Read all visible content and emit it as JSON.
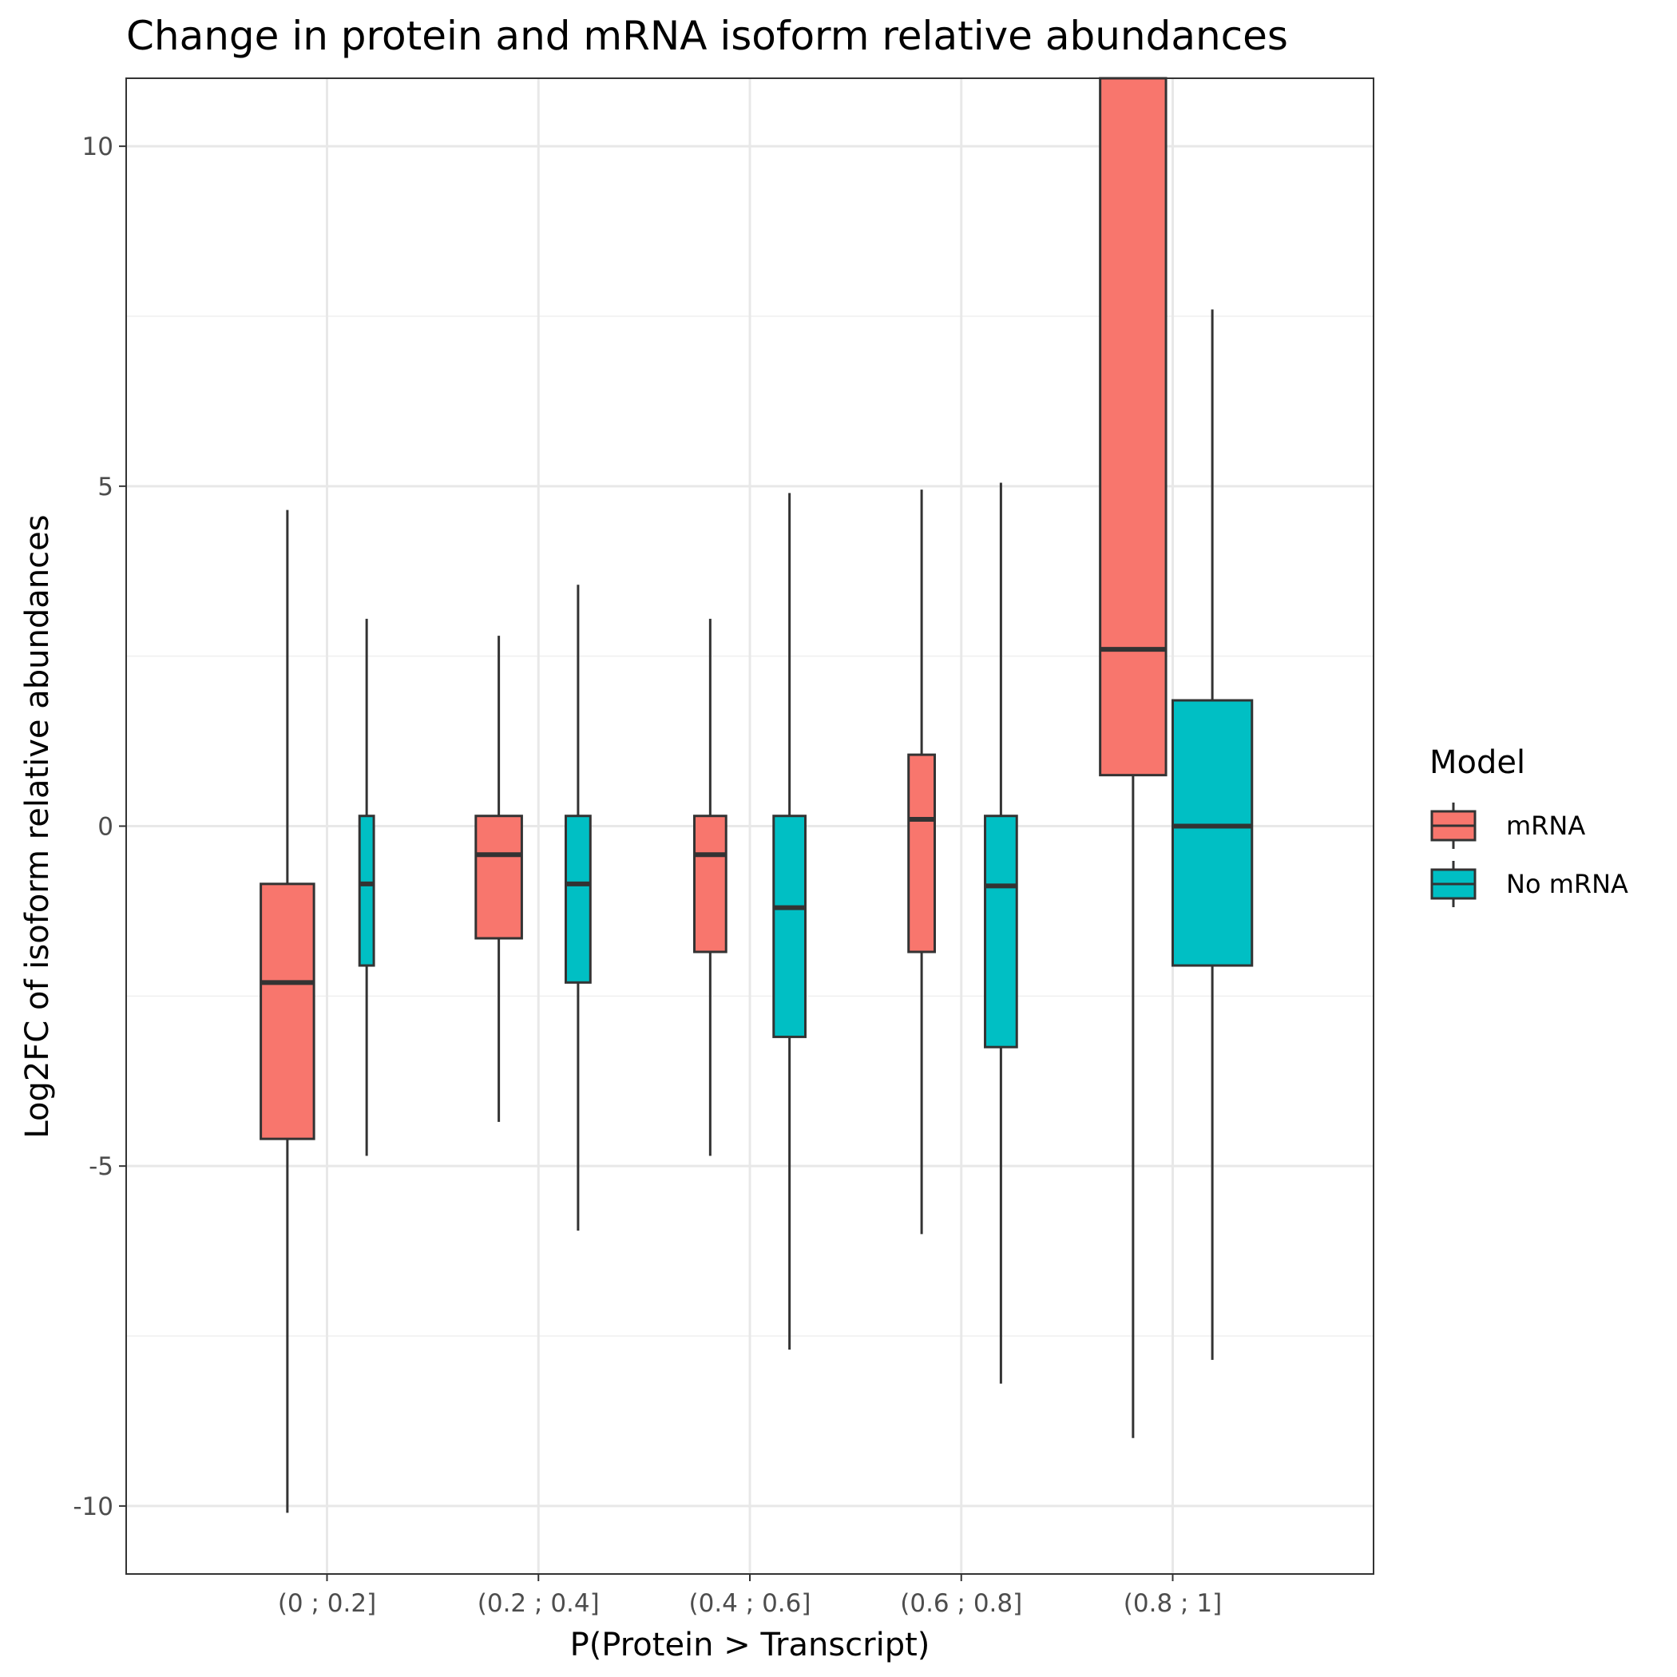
{
  "chart_data": {
    "type": "boxplot",
    "title": "Change in protein and mRNA isoform relative abundances",
    "xlabel": "P(Protein > Transcript)",
    "ylabel": "Log2FC of isoform relative abundances",
    "categories": [
      "(0 ; 0.2]",
      "(0.2 ; 0.4]",
      "(0.4 ; 0.6]",
      "(0.6 ; 0.8]",
      "(0.8 ; 1]"
    ],
    "ylim": [
      -11.0,
      11.0
    ],
    "yticks": [
      -10,
      -5,
      0,
      5,
      10
    ],
    "ytick_labels": [
      "-10",
      "-5",
      "0",
      "5",
      "10"
    ],
    "grid": true,
    "legend": {
      "title": "Model",
      "position": "right",
      "entries": [
        "mRNA",
        "No mRNA"
      ]
    },
    "series": [
      {
        "name": "mRNA",
        "color": "#F8766D",
        "boxes": [
          {
            "whisker_low": -10.1,
            "q1": -4.6,
            "median": -2.3,
            "q3": -0.85,
            "whisker_high": 4.65
          },
          {
            "whisker_low": -4.35,
            "q1": -1.65,
            "median": -0.42,
            "q3": 0.15,
            "whisker_high": 2.8
          },
          {
            "whisker_low": -4.85,
            "q1": -1.85,
            "median": -0.42,
            "q3": 0.15,
            "whisker_high": 3.05
          },
          {
            "whisker_low": -6.0,
            "q1": -1.85,
            "median": 0.1,
            "q3": 1.05,
            "whisker_high": 4.95
          },
          {
            "whisker_low": -9.0,
            "q1": 0.75,
            "median": 2.6,
            "q3": 11.0,
            "whisker_high": 11.0
          }
        ]
      },
      {
        "name": "No mRNA",
        "color": "#00BFC4",
        "boxes": [
          {
            "whisker_low": -4.85,
            "q1": -2.05,
            "median": -0.85,
            "q3": 0.15,
            "whisker_high": 3.05
          },
          {
            "whisker_low": -5.95,
            "q1": -2.3,
            "median": -0.85,
            "q3": 0.15,
            "whisker_high": 3.55
          },
          {
            "whisker_low": -7.7,
            "q1": -3.1,
            "median": -1.2,
            "q3": 0.15,
            "whisker_high": 4.9
          },
          {
            "whisker_low": -8.2,
            "q1": -3.25,
            "median": -0.88,
            "q3": 0.15,
            "whisker_high": 5.05
          },
          {
            "whisker_low": -7.85,
            "q1": -2.05,
            "median": 0.0,
            "q3": 1.85,
            "whisker_high": 7.6
          }
        ]
      }
    ]
  }
}
